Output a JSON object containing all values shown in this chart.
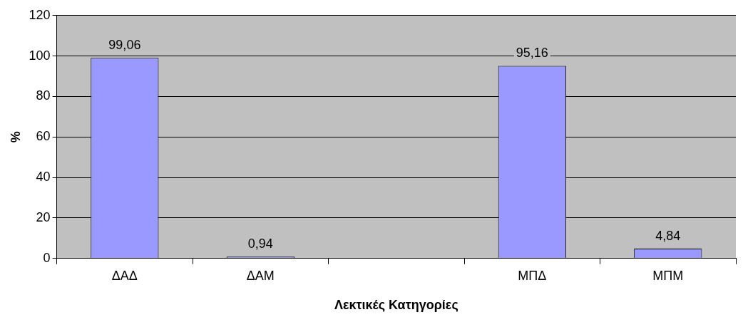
{
  "chart_data": {
    "type": "bar",
    "xlabel": "Λεκτικές Κατηγορίες",
    "ylabel": "%",
    "categories": [
      "ΔΑΔ",
      "ΔΑΜ",
      null,
      "ΜΠΔ",
      "ΜΠΜ"
    ],
    "values": [
      99.06,
      0.94,
      null,
      95.16,
      4.84
    ],
    "value_labels": [
      "99,06",
      "0,94",
      null,
      "95,16",
      "4,84"
    ],
    "color": "#9999ff",
    "ylim": [
      0,
      120
    ],
    "yticks": [
      0,
      20,
      40,
      60,
      80,
      100,
      120
    ],
    "grid": "y",
    "legend": false
  }
}
